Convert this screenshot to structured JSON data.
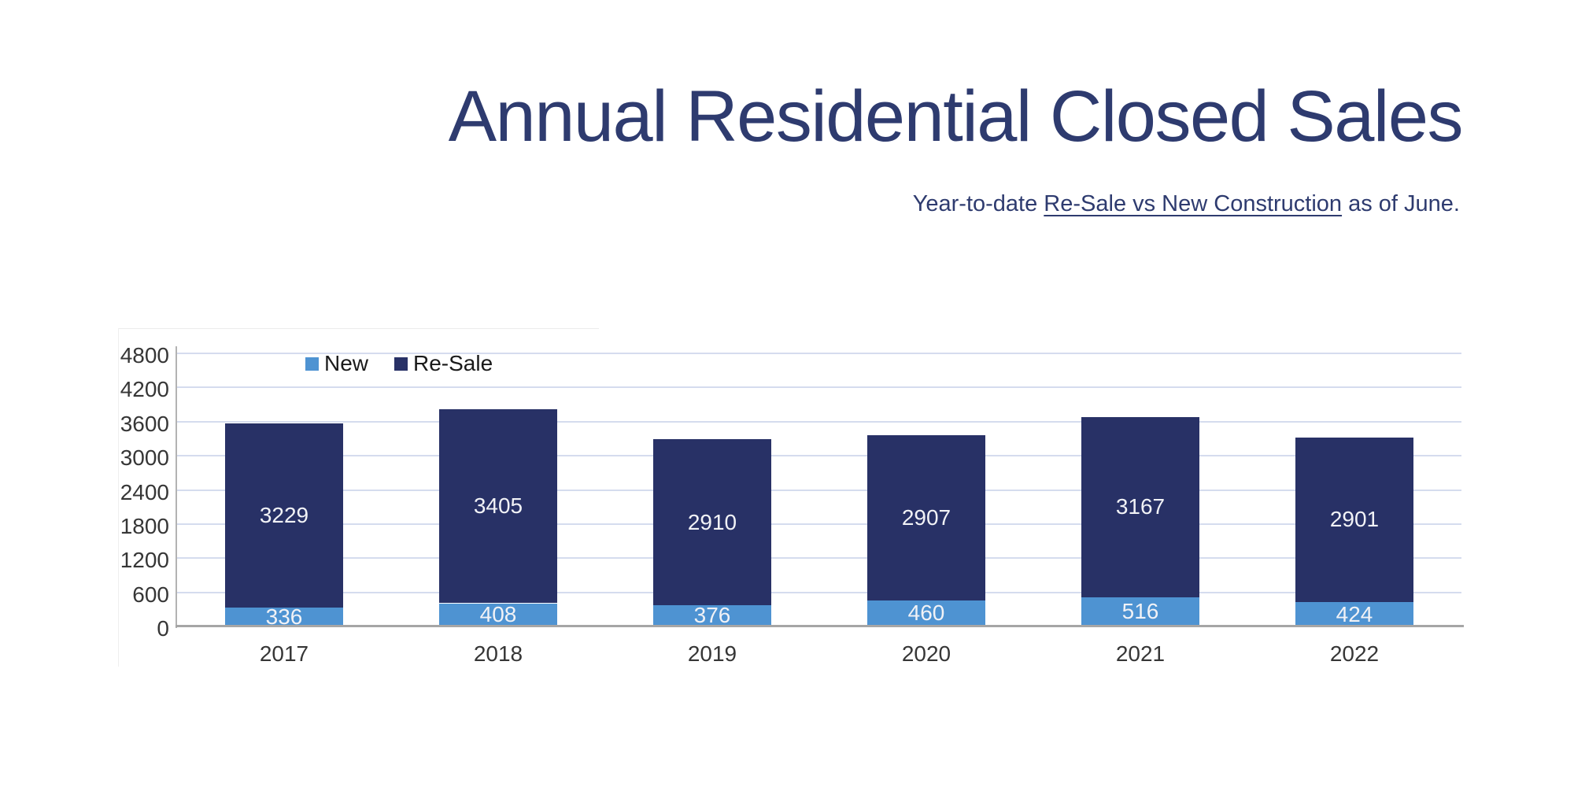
{
  "header": {
    "title": "Annual Residential Closed Sales",
    "subtitle_prefix": "Year-to-date ",
    "subtitle_underlined": "Re-Sale vs New Construction",
    "subtitle_suffix": " as of June."
  },
  "colors": {
    "title_text": "#2e3b6f",
    "subtitle_text": "#2e3b6f",
    "new_bar": "#4e93d2",
    "resale_bar": "#283166",
    "gridline": "#d5dcee",
    "axis_line": "#a6a6a6",
    "tick_text": "#363636",
    "bar_label_text": "#f1f2f6"
  },
  "chart_data": {
    "type": "bar",
    "stacked": true,
    "title": "Annual Residential Closed Sales",
    "subtitle": "Year-to-date Re-Sale vs New Construction as of June.",
    "categories": [
      "2017",
      "2018",
      "2019",
      "2020",
      "2021",
      "2022"
    ],
    "series": [
      {
        "name": "New",
        "color": "#4e93d2",
        "values": [
          336,
          408,
          376,
          460,
          516,
          424
        ]
      },
      {
        "name": "Re-Sale",
        "color": "#283166",
        "values": [
          3229,
          3405,
          2910,
          2907,
          3167,
          2901
        ]
      }
    ],
    "totals": [
      3565,
      3813,
      3286,
      3367,
      3683,
      3325
    ],
    "ylim": [
      0,
      4800
    ],
    "yticks": [
      0,
      600,
      1200,
      1800,
      2400,
      3000,
      3600,
      4200,
      4800
    ],
    "grid": "horizontal",
    "legend_position": "top-inside-left",
    "xlabel": "",
    "ylabel": ""
  }
}
